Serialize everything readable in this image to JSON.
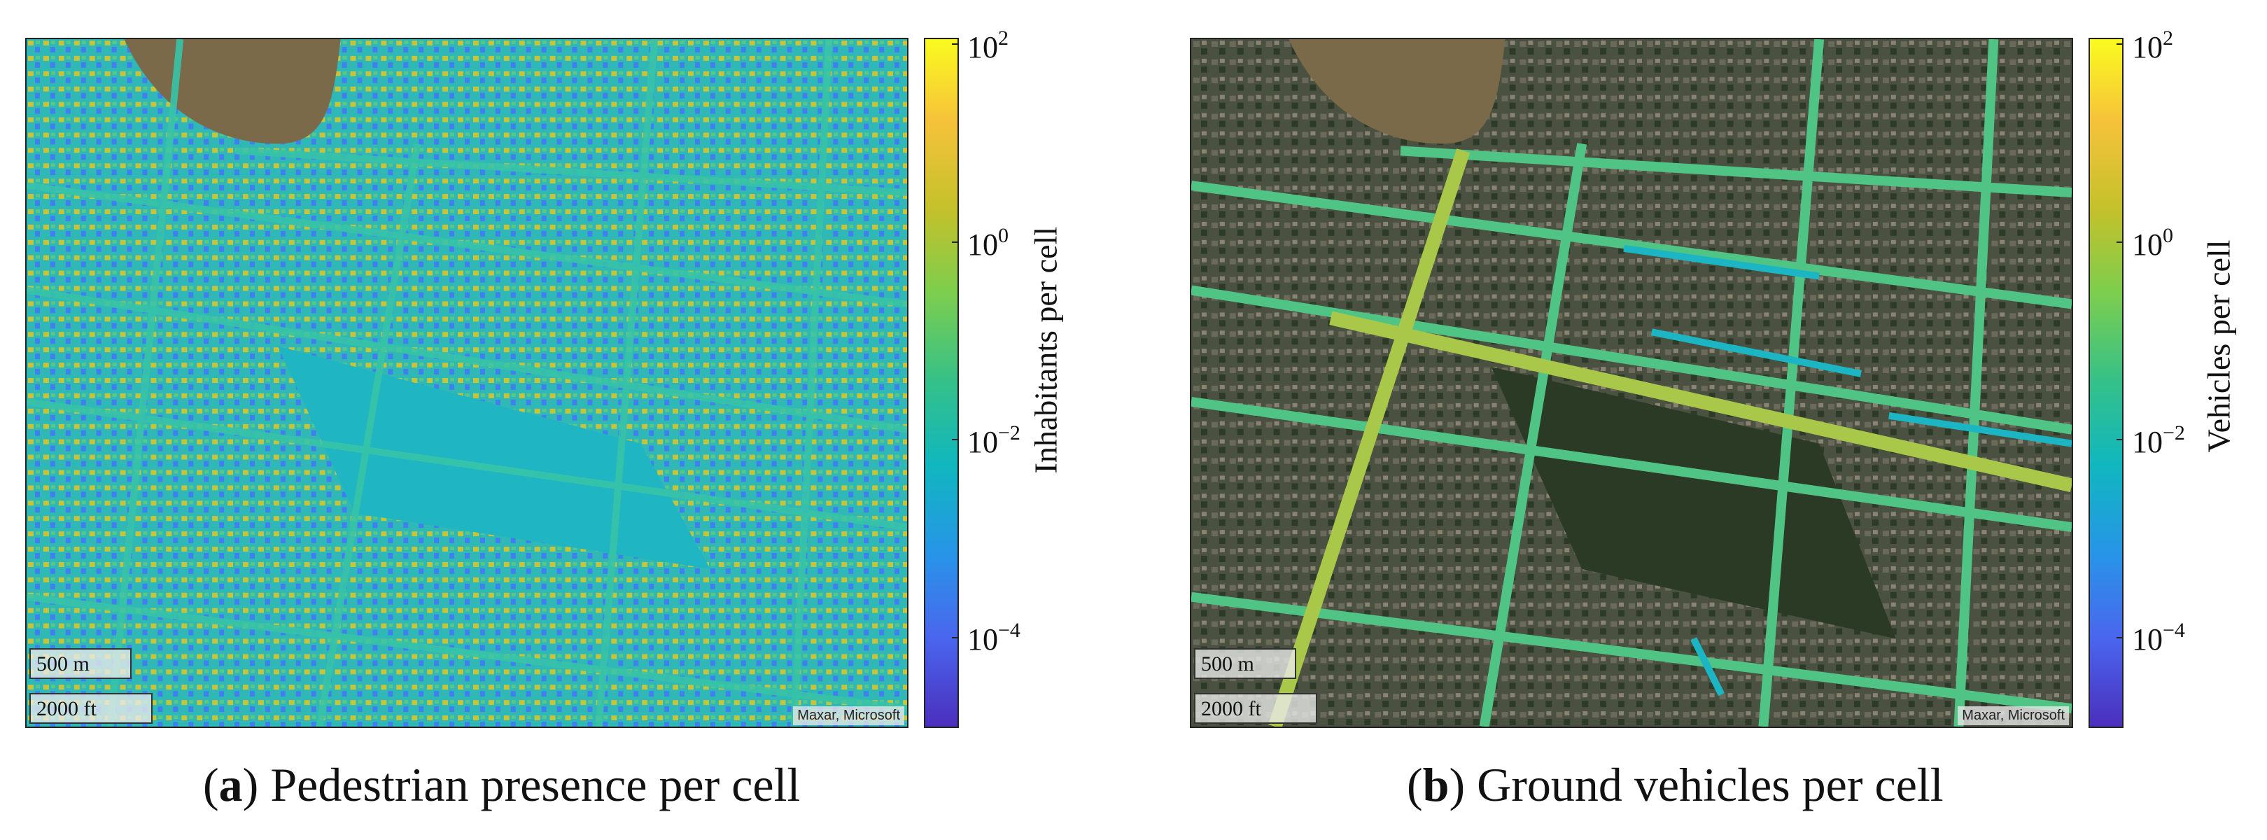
{
  "panels": [
    {
      "id": "a",
      "caption_letter": "a",
      "caption_text": "Pedestrian presence per cell",
      "colorbar_label": "Inhabitants per cell",
      "scale_metric": "500 m",
      "scale_imperial": "2000 ft",
      "attribution": "Maxar, Microsoft"
    },
    {
      "id": "b",
      "caption_letter": "b",
      "caption_text": "Ground vehicles per cell",
      "colorbar_label": "Vehicles per cell",
      "scale_metric": "500 m",
      "scale_imperial": "2000 ft",
      "attribution": "Maxar, Microsoft"
    }
  ],
  "colorbar": {
    "scale": "log",
    "colormap": "parula",
    "range": [
      1e-05,
      100
    ],
    "ticks": [
      {
        "base": "10",
        "exp": "2",
        "value": 100
      },
      {
        "base": "10",
        "exp": "0",
        "value": 1
      },
      {
        "base": "10",
        "exp": "−2",
        "value": 0.01
      },
      {
        "base": "10",
        "exp": "−4",
        "value": 0.0001
      }
    ]
  },
  "colors": {
    "river": "#7a6a4a",
    "urban_dark": "#3f4a3a",
    "park_dark": "#2d3a26",
    "cyan": "#1bb5c4",
    "teal_green": "#3fbf8c",
    "yellow_green": "#a9c84a",
    "yellow": "#d7c23a",
    "blue": "#3f6ff0"
  }
}
